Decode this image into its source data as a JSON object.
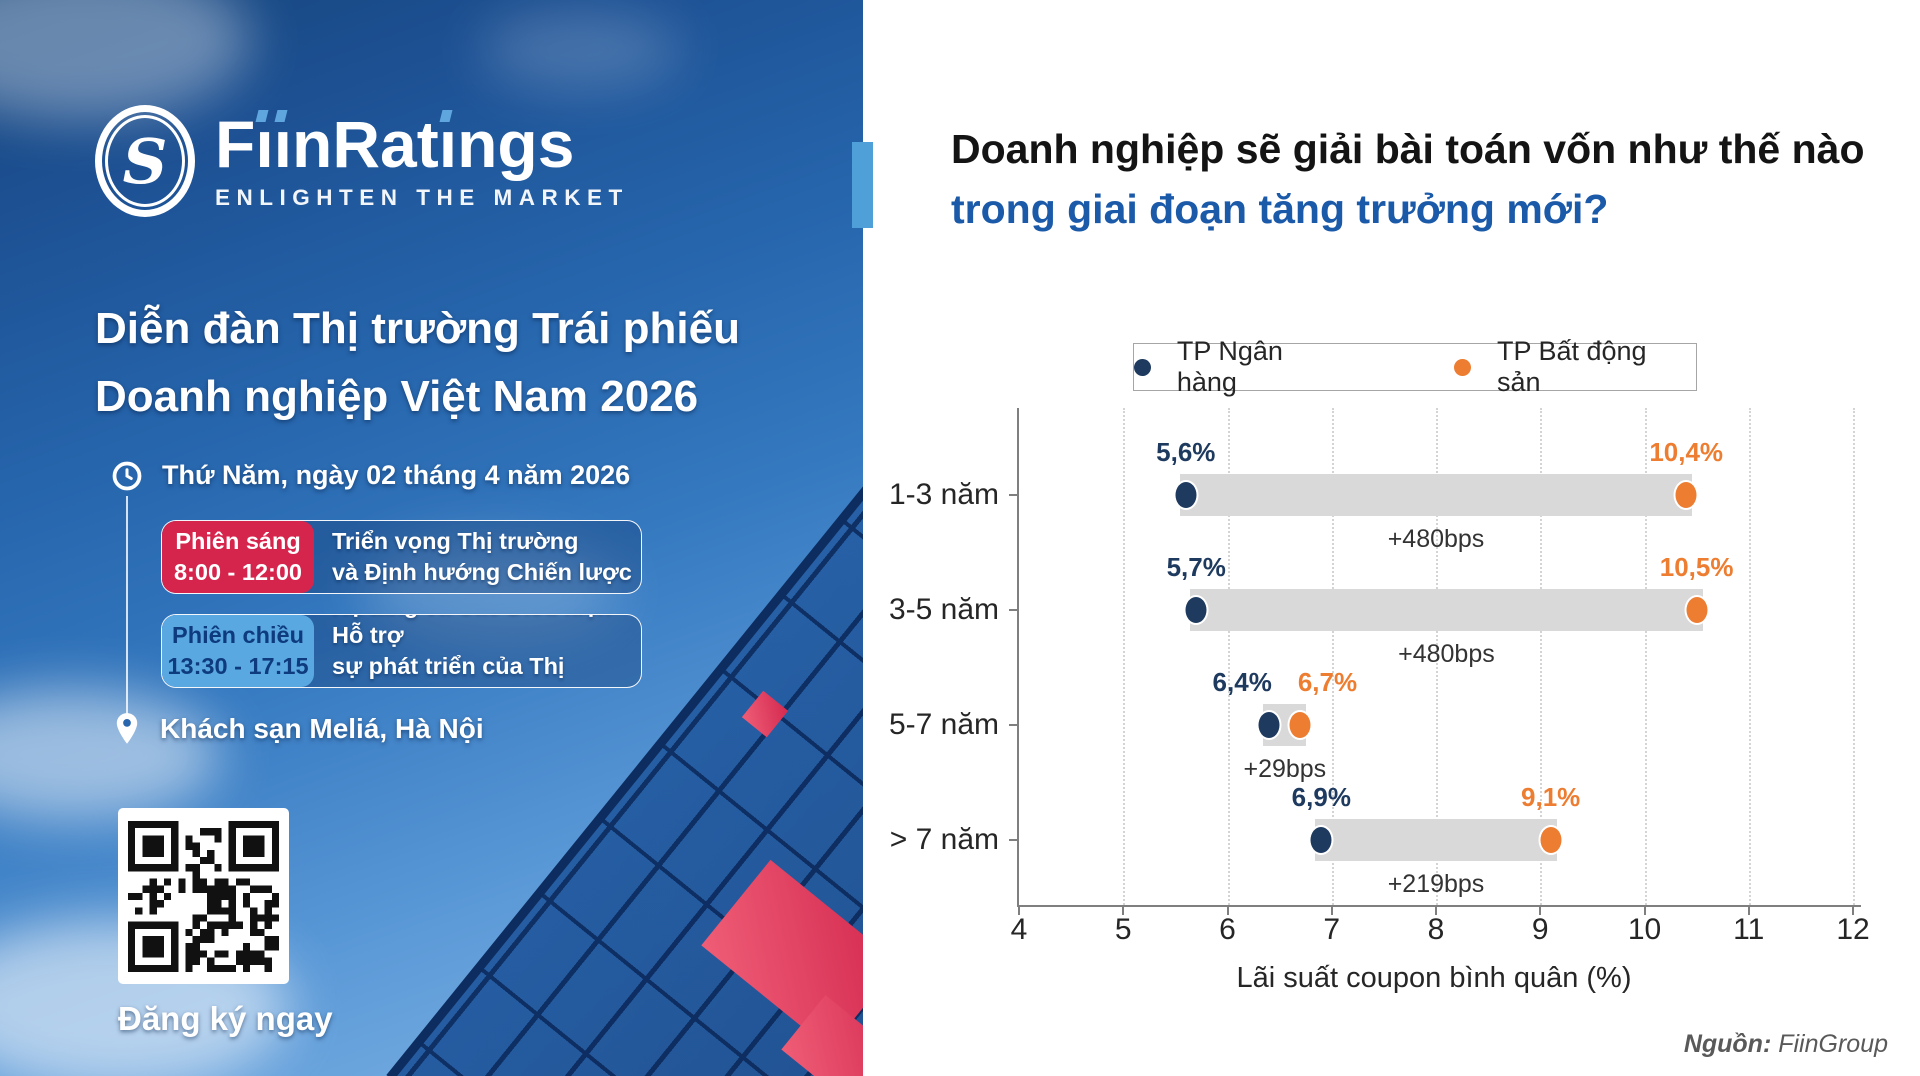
{
  "left_panel": {
    "logo": {
      "brand": "FiinRatings",
      "tagline": "ENLIGHTEN THE MARKET",
      "dot_color": "#5fa6de"
    },
    "title_line1": "Diễn đàn Thị trường Trái phiếu",
    "title_line2": "Doanh nghiệp Việt Nam 2026",
    "date": "Thứ Năm, ngày 02 tháng 4 năm 2026",
    "sessions": [
      {
        "name": "Phiên sáng",
        "time": "8:00 - 12:00",
        "desc_line1": "Triển vọng Thị trường",
        "desc_line2": "và Định hướng Chiến lược",
        "badge_color": "#d6254d",
        "badge_text_color": "#ffffff"
      },
      {
        "name": "Phiên chiều",
        "time": "13:30 - 17:15",
        "desc_line1": "Hạ tầng và Các Điều kiện Hỗ trợ",
        "desc_line2": "sự phát triển của Thị trường",
        "badge_color": "#5aa8e2",
        "badge_text_color": "#0d3b7d"
      }
    ],
    "location": "Khách sạn Meliá, Hà Nội",
    "register_label": "Đăng ký ngay"
  },
  "right_panel": {
    "heading_line1": "Doanh nghiệp sẽ giải bài toán vốn như thế nào",
    "heading_line2": "trong giai đoạn tăng trưởng mới?",
    "heading_accent_color": "#4f9fd8",
    "source_label": "Nguồn:",
    "source_value": "FiinGroup"
  },
  "chart_data": {
    "type": "dumbbell",
    "categories": [
      "1-3 năm",
      "3-5 năm",
      "5-7 năm",
      "> 7 năm"
    ],
    "series": [
      {
        "name": "TP Ngân hàng",
        "color": "#1e3a5f",
        "values": [
          5.6,
          5.7,
          6.4,
          6.9
        ],
        "labels": [
          "5,6%",
          "5,7%",
          "6,4%",
          "6,9%"
        ]
      },
      {
        "name": "TP Bất động sản",
        "color": "#ed7d31",
        "values": [
          10.4,
          10.5,
          6.7,
          9.1
        ],
        "labels": [
          "10,4%",
          "10,5%",
          "6,7%",
          "9,1%"
        ]
      }
    ],
    "spreads": [
      "+480bps",
      "+480bps",
      "+29bps",
      "+219bps"
    ],
    "xlabel": "Lãi suất coupon bình quân (%)",
    "x_ticks": [
      4,
      5,
      6,
      7,
      8,
      9,
      10,
      11,
      12
    ],
    "xlim": [
      4,
      12
    ],
    "bar_color": "#d9d9d9",
    "grid": true,
    "legend_position": "top"
  }
}
